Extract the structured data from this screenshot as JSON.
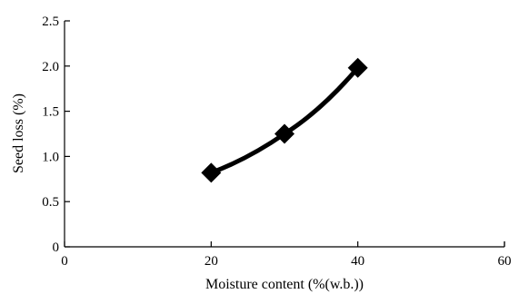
{
  "chart_data": {
    "type": "line",
    "xlabel": "Moisture content (%(w.b.))",
    "ylabel": "Seed loss (%)",
    "xlim": [
      0,
      60
    ],
    "ylim": [
      0,
      2.5
    ],
    "x_ticks": [
      0,
      20,
      40,
      60
    ],
    "x_tick_labels": [
      "0",
      "20",
      "40",
      "60"
    ],
    "y_ticks": [
      0,
      0.5,
      1.0,
      1.5,
      2.0,
      2.5
    ],
    "y_tick_labels": [
      "0",
      "0.5",
      "1.0",
      "1.5",
      "2.0",
      "2.5"
    ],
    "grid": false,
    "legend": "none",
    "series": [
      {
        "x": [
          20,
          30,
          40
        ],
        "y": [
          0.82,
          1.25,
          1.98
        ],
        "marker": "diamond",
        "color": "#000000"
      }
    ]
  }
}
